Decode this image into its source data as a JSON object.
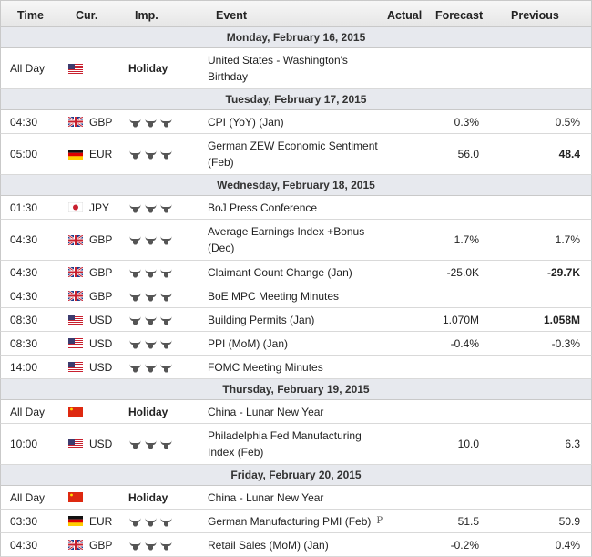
{
  "header": {
    "time": "Time",
    "currency": "Cur.",
    "importance": "Imp.",
    "event": "Event",
    "actual": "Actual",
    "forecast": "Forecast",
    "previous": "Previous"
  },
  "colors": {
    "header_bg": "#e6e6e6",
    "date_row_bg": "#e7e9ee",
    "border": "#c9c9c9",
    "bull_icon": "#555555",
    "previous_up": "#222222"
  },
  "days": [
    {
      "date": "Monday, February 16, 2015",
      "events": [
        {
          "time": "All Day",
          "flag": "us-flag-icon",
          "currency": "",
          "importance": "Holiday",
          "event": "United States - Washington's Birthday",
          "actual": "",
          "forecast": "",
          "previous": ""
        }
      ]
    },
    {
      "date": "Tuesday, February 17, 2015",
      "events": [
        {
          "time": "04:30",
          "flag": "uk-flag-icon",
          "currency": "GBP",
          "importance": "bulls-3",
          "event": "CPI (YoY) (Jan)",
          "actual": "",
          "forecast": "0.3%",
          "previous": "0.5%"
        },
        {
          "time": "05:00",
          "flag": "de-flag-icon",
          "currency": "EUR",
          "importance": "bulls-3",
          "event": "German ZEW Economic Sentiment (Feb)",
          "actual": "",
          "forecast": "56.0",
          "previous": "48.4"
        }
      ]
    },
    {
      "date": "Wednesday, February 18, 2015",
      "events": [
        {
          "time": "01:30",
          "flag": "jp-flag-icon",
          "currency": "JPY",
          "importance": "bulls-3",
          "event": "BoJ Press Conference",
          "actual": "",
          "forecast": "",
          "previous": ""
        },
        {
          "time": "04:30",
          "flag": "uk-flag-icon",
          "currency": "GBP",
          "importance": "bulls-3",
          "event": "Average Earnings Index +Bonus (Dec)",
          "actual": "",
          "forecast": "1.7%",
          "previous": "1.7%"
        },
        {
          "time": "04:30",
          "flag": "uk-flag-icon",
          "currency": "GBP",
          "importance": "bulls-3",
          "event": "Claimant Count Change (Jan)",
          "actual": "",
          "forecast": "-25.0K",
          "previous": "-29.7K"
        },
        {
          "time": "04:30",
          "flag": "uk-flag-icon",
          "currency": "GBP",
          "importance": "bulls-3",
          "event": "BoE MPC Meeting Minutes",
          "actual": "",
          "forecast": "",
          "previous": ""
        },
        {
          "time": "08:30",
          "flag": "us-flag-icon",
          "currency": "USD",
          "importance": "bulls-3",
          "event": "Building Permits (Jan)",
          "actual": "",
          "forecast": "1.070M",
          "previous": "1.058M"
        },
        {
          "time": "08:30",
          "flag": "us-flag-icon",
          "currency": "USD",
          "importance": "bulls-3",
          "event": "PPI (MoM) (Jan)",
          "actual": "",
          "forecast": "-0.4%",
          "previous": "-0.3%"
        },
        {
          "time": "14:00",
          "flag": "us-flag-icon",
          "currency": "USD",
          "importance": "bulls-3",
          "event": "FOMC Meeting Minutes",
          "actual": "",
          "forecast": "",
          "previous": ""
        }
      ]
    },
    {
      "date": "Thursday, February 19, 2015",
      "events": [
        {
          "time": "All Day",
          "flag": "cn-flag-icon",
          "currency": "",
          "importance": "Holiday",
          "event": "China - Lunar New Year",
          "actual": "",
          "forecast": "",
          "previous": ""
        },
        {
          "time": "10:00",
          "flag": "us-flag-icon",
          "currency": "USD",
          "importance": "bulls-3",
          "event": "Philadelphia Fed Manufacturing Index (Feb)",
          "actual": "",
          "forecast": "10.0",
          "previous": "6.3"
        }
      ]
    },
    {
      "date": "Friday, February 20, 2015",
      "events": [
        {
          "time": "All Day",
          "flag": "cn-flag-icon",
          "currency": "",
          "importance": "Holiday",
          "event": "China - Lunar New Year",
          "actual": "",
          "forecast": "",
          "previous": ""
        },
        {
          "time": "03:30",
          "flag": "de-flag-icon",
          "currency": "EUR",
          "importance": "bulls-3",
          "event": "German Manufacturing PMI (Feb)",
          "prelim": "P",
          "actual": "",
          "forecast": "51.5",
          "previous": "50.9"
        },
        {
          "time": "04:30",
          "flag": "uk-flag-icon",
          "currency": "GBP",
          "importance": "bulls-3",
          "event": "Retail Sales (MoM) (Jan)",
          "actual": "",
          "forecast": "-0.2%",
          "previous": "0.4%"
        }
      ]
    }
  ]
}
